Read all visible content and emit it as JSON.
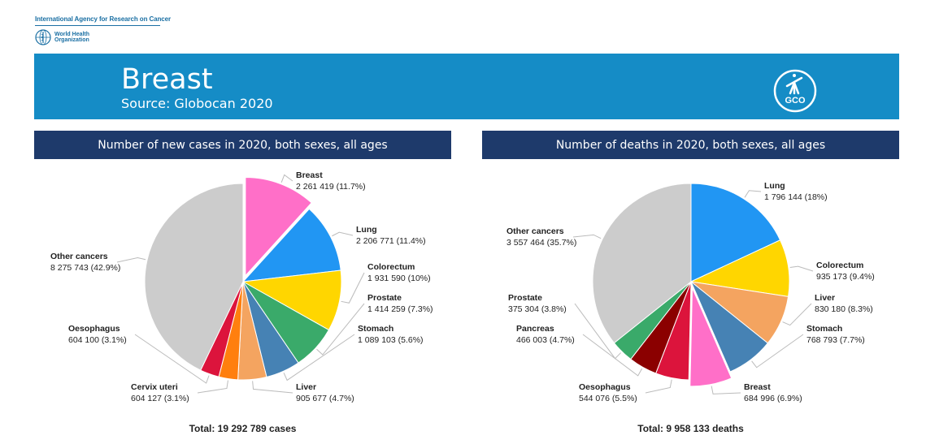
{
  "header": {
    "agency": "International Agency for Research on Cancer",
    "who_line1": "World Health",
    "who_line2": "Organization",
    "title": "Breast",
    "subtitle": "Source: Globocan 2020",
    "logo_text": "GCO"
  },
  "colors": {
    "banner": "#158cc6",
    "panel_header": "#1e3a6b"
  },
  "chart_data": [
    {
      "type": "pie",
      "title": "Number of new cases in 2020, both sexes, all ages",
      "total_label": "Total: 19 292 789 cases",
      "slices": [
        {
          "name": "Breast",
          "value_label": "2 261 419 (11.7%)",
          "value": 2261419,
          "percent": 11.7,
          "color": "#ff6fc8",
          "exploded": true
        },
        {
          "name": "Lung",
          "value_label": "2 206 771 (11.4%)",
          "value": 2206771,
          "percent": 11.4,
          "color": "#2196f3"
        },
        {
          "name": "Colorectum",
          "value_label": "1 931 590 (10%)",
          "value": 1931590,
          "percent": 10.0,
          "color": "#ffd600"
        },
        {
          "name": "Prostate",
          "value_label": "1 414 259 (7.3%)",
          "value": 1414259,
          "percent": 7.3,
          "color": "#3aaa6a"
        },
        {
          "name": "Stomach",
          "value_label": "1 089 103 (5.6%)",
          "value": 1089103,
          "percent": 5.6,
          "color": "#4682b4"
        },
        {
          "name": "Liver",
          "value_label": "905 677 (4.7%)",
          "value": 905677,
          "percent": 4.7,
          "color": "#f4a460"
        },
        {
          "name": "Cervix uteri",
          "value_label": "604 127 (3.1%)",
          "value": 604127,
          "percent": 3.1,
          "color": "#ff7f0e"
        },
        {
          "name": "Oesophagus",
          "value_label": "604 100 (3.1%)",
          "value": 604100,
          "percent": 3.1,
          "color": "#dc143c"
        },
        {
          "name": "Other cancers",
          "value_label": "8 275 743 (42.9%)",
          "value": 8275743,
          "percent": 42.9,
          "color": "#cccccc"
        }
      ]
    },
    {
      "type": "pie",
      "title": "Number of deaths in 2020, both sexes, all ages",
      "total_label": "Total: 9 958 133 deaths",
      "slices": [
        {
          "name": "Lung",
          "value_label": "1 796 144 (18%)",
          "value": 1796144,
          "percent": 18.0,
          "color": "#2196f3"
        },
        {
          "name": "Colorectum",
          "value_label": "935 173 (9.4%)",
          "value": 935173,
          "percent": 9.4,
          "color": "#ffd600"
        },
        {
          "name": "Liver",
          "value_label": "830 180 (8.3%)",
          "value": 830180,
          "percent": 8.3,
          "color": "#f4a460"
        },
        {
          "name": "Stomach",
          "value_label": "768 793 (7.7%)",
          "value": 768793,
          "percent": 7.7,
          "color": "#4682b4"
        },
        {
          "name": "Breast",
          "value_label": "684 996 (6.9%)",
          "value": 684996,
          "percent": 6.9,
          "color": "#ff6fc8",
          "exploded": true
        },
        {
          "name": "Oesophagus",
          "value_label": "544 076 (5.5%)",
          "value": 544076,
          "percent": 5.5,
          "color": "#dc143c"
        },
        {
          "name": "Pancreas",
          "value_label": "466 003 (4.7%)",
          "value": 466003,
          "percent": 4.7,
          "color": "#8b0000"
        },
        {
          "name": "Prostate",
          "value_label": "375 304 (3.8%)",
          "value": 375304,
          "percent": 3.8,
          "color": "#3aaa6a"
        },
        {
          "name": "Other cancers",
          "value_label": "3 557 464 (35.7%)",
          "value": 3557464,
          "percent": 35.7,
          "color": "#cccccc"
        }
      ]
    }
  ]
}
